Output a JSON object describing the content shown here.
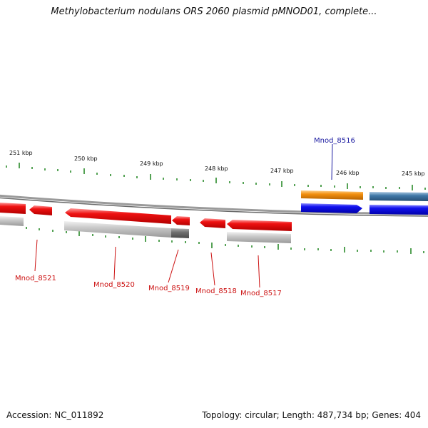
{
  "header": {
    "title": "Methylobacterium nodulans ORS 2060 plasmid pMNOD01, complete..."
  },
  "footer": {
    "accession": "Accession: NC_011892",
    "summary": "Topology: circular; Length: 487,734 bp; Genes: 404"
  },
  "scale": {
    "labels": [
      "251 kbp",
      "250 kbp",
      "249 kbp",
      "248 kbp",
      "247 kbp",
      "246 kbp",
      "245 kbp"
    ]
  },
  "genes": {
    "labels": [
      "Mnod_8521",
      "Mnod_8520",
      "Mnod_8519",
      "Mnod_8518",
      "Mnod_8517",
      "Mnod_8516"
    ]
  },
  "colors": {
    "reverse_gene": "#ee1111",
    "forward_gene": "#1111ee",
    "orange_feature": "#f2900f",
    "steel_feature": "#3f78a8",
    "tick": "#2a8a2a",
    "backbone": "#888888",
    "label_red": "#cc1111",
    "label_blue": "#1a1aa0"
  }
}
